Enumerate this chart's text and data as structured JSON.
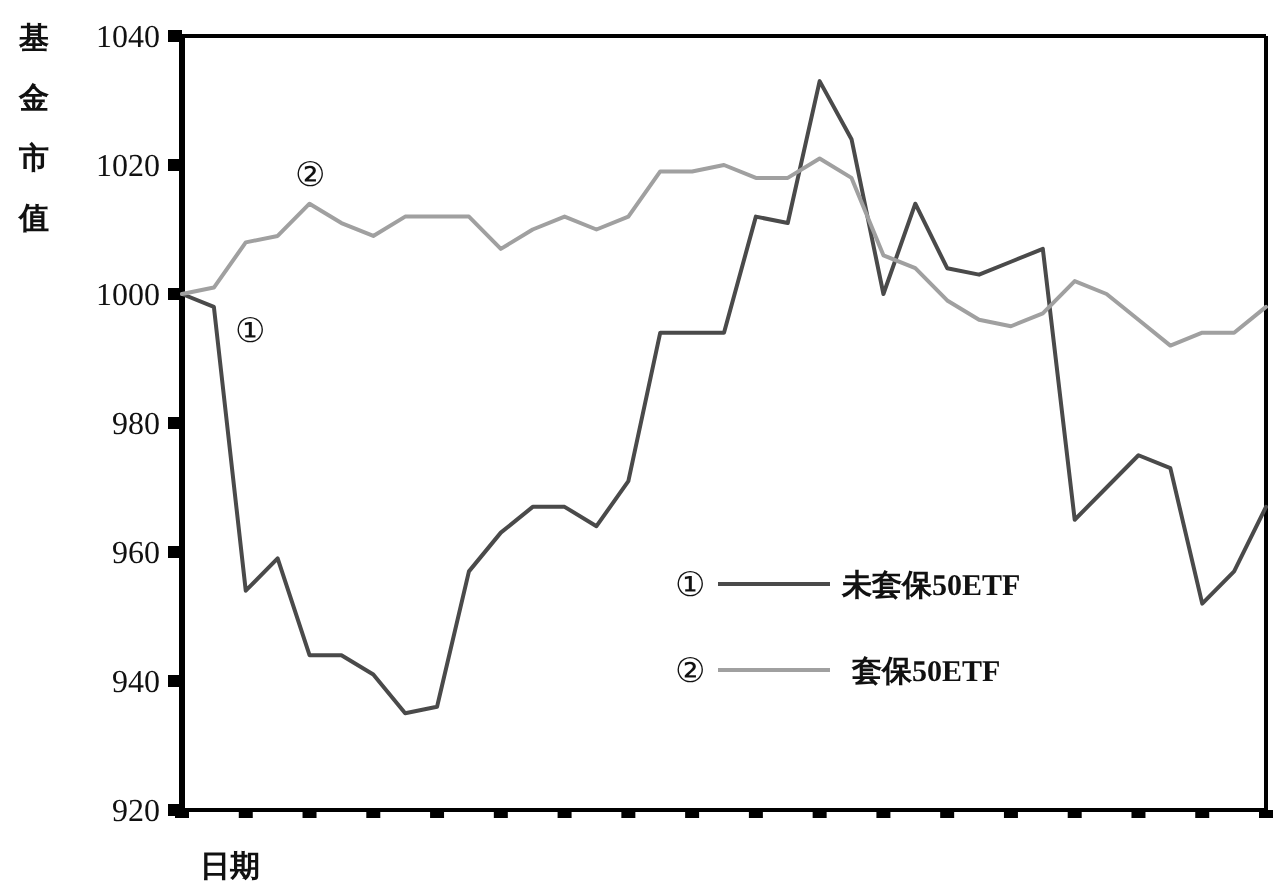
{
  "chart_data": {
    "type": "line",
    "xlabel": "日期",
    "ylabel": "基金市值",
    "categories": [
      null,
      null,
      null,
      null,
      null,
      null,
      null,
      null,
      null,
      null,
      null,
      null,
      null,
      null,
      null,
      null,
      null,
      null,
      null,
      null,
      null,
      null,
      null,
      null,
      null,
      null,
      null,
      null,
      null,
      null,
      null,
      null,
      null,
      null,
      null
    ],
    "series": [
      {
        "name": "未套保50ETF",
        "color": "#4a4a4a",
        "values": [
          1000,
          998,
          954,
          959,
          944,
          944,
          941,
          935,
          936,
          957,
          963,
          967,
          967,
          964,
          971,
          994,
          994,
          994,
          1012,
          1011,
          1033,
          1024,
          1000,
          1014,
          1004,
          1003,
          1005,
          1007,
          965,
          970,
          975,
          973,
          952,
          957,
          967
        ]
      },
      {
        "name": "套保50ETF",
        "color": "#a0a0a0",
        "values": [
          1000,
          1001,
          1008,
          1009,
          1014,
          1011,
          1009,
          1012,
          1012,
          1012,
          1007,
          1010,
          1012,
          1010,
          1012,
          1019,
          1019,
          1020,
          1018,
          1018,
          1021,
          1018,
          1006,
          1004,
          999,
          996,
          995,
          997,
          1002,
          1000,
          996,
          992,
          994,
          994,
          998
        ]
      }
    ],
    "ylim": [
      920,
      1040
    ],
    "yticks": [
      920,
      940,
      960,
      980,
      1000,
      1020,
      1040
    ],
    "legend": "bottom",
    "marker": "none",
    "line_style": "solid",
    "annotations": [
      "①",
      "②"
    ]
  }
}
